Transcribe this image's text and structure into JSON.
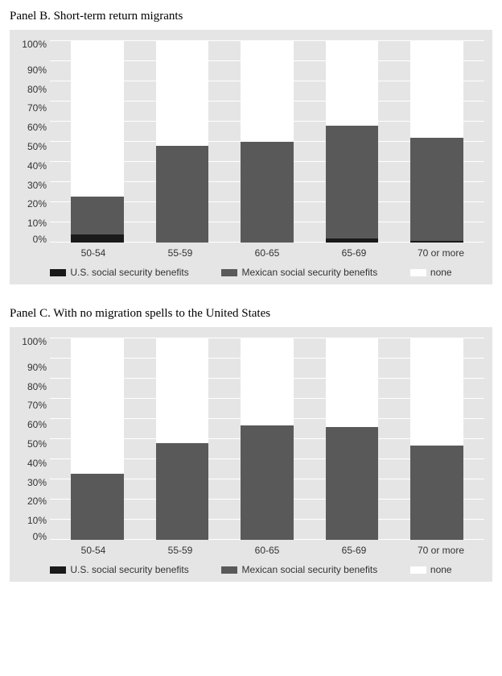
{
  "colors": {
    "us": "#1a1a1a",
    "mex": "#595959",
    "none": "#ffffff",
    "plot_bg": "#e5e5e5",
    "gridline": "#ffffff"
  },
  "y_axis": {
    "ticks": [
      "100%",
      "90%",
      "80%",
      "70%",
      "60%",
      "50%",
      "40%",
      "30%",
      "20%",
      "10%",
      "0%"
    ],
    "min": 0,
    "max": 100,
    "step": 10
  },
  "legend": {
    "items": [
      {
        "label": "U.S. social security benefits",
        "color_key": "us"
      },
      {
        "label": "Mexican social security benefits",
        "color_key": "mex"
      },
      {
        "label": "none",
        "color_key": "none"
      }
    ]
  },
  "panels": [
    {
      "title": "Panel B. Short-term return migrants",
      "categories": [
        "50-54",
        "55-59",
        "60-65",
        "65-69",
        "70 or more"
      ],
      "series_order": [
        "us",
        "mex",
        "none"
      ],
      "data": [
        {
          "us": 4,
          "mex": 19,
          "none": 77
        },
        {
          "us": 0,
          "mex": 48,
          "none": 52
        },
        {
          "us": 0,
          "mex": 50,
          "none": 50
        },
        {
          "us": 2,
          "mex": 56,
          "none": 42
        },
        {
          "us": 1,
          "mex": 51,
          "none": 48
        }
      ]
    },
    {
      "title": "Panel C. With no migration spells to the United States",
      "categories": [
        "50-54",
        "55-59",
        "60-65",
        "65-69",
        "70 or more"
      ],
      "series_order": [
        "us",
        "mex",
        "none"
      ],
      "data": [
        {
          "us": 0,
          "mex": 33,
          "none": 67
        },
        {
          "us": 0,
          "mex": 48,
          "none": 52
        },
        {
          "us": 0,
          "mex": 57,
          "none": 43
        },
        {
          "us": 0,
          "mex": 56,
          "none": 44
        },
        {
          "us": 0,
          "mex": 47,
          "none": 53
        }
      ]
    }
  ]
}
